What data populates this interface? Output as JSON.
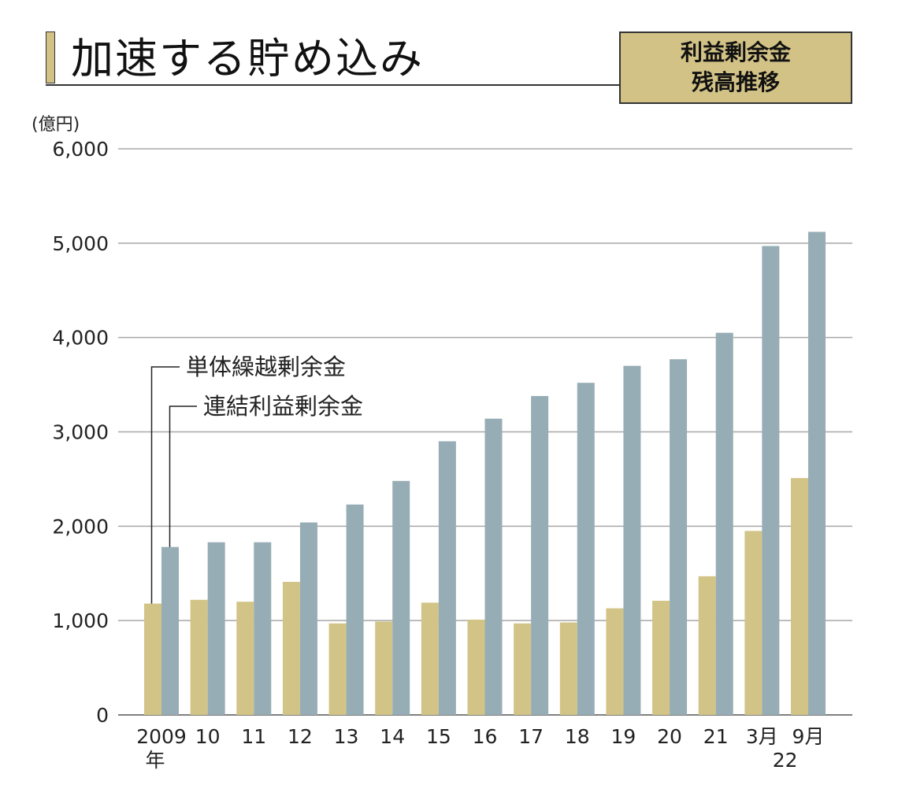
{
  "header": {
    "title": "加速する貯め込み",
    "box_line1": "利益剰余金",
    "box_line2": "残高推移"
  },
  "colors": {
    "tan": "#d2c487",
    "blue": "#97adb6",
    "grid": "#a8a8a8",
    "accent": "#d2c286"
  },
  "chart_data": {
    "type": "bar",
    "title": "加速する貯め込み",
    "subtitle": "利益剰余金 残高推移",
    "ylabel": "(億円)",
    "ylim": [
      0,
      6000
    ],
    "yticks": [
      0,
      1000,
      2000,
      3000,
      4000,
      5000,
      6000
    ],
    "ytick_labels": [
      "0",
      "1,000",
      "2,000",
      "3,000",
      "4,000",
      "5,000",
      "6,000"
    ],
    "grid": true,
    "categories": [
      "2009",
      "10",
      "11",
      "12",
      "13",
      "14",
      "15",
      "16",
      "17",
      "18",
      "19",
      "20",
      "21",
      "3月",
      "9月"
    ],
    "category_sublabels": {
      "2009": "年",
      "3月": "22",
      "9月": "22"
    },
    "series": [
      {
        "name": "単体繰越剰余金",
        "color": "#d2c487",
        "values": [
          1180,
          1220,
          1200,
          1410,
          970,
          990,
          1190,
          1010,
          970,
          980,
          1130,
          1210,
          1470,
          1950,
          2510
        ]
      },
      {
        "name": "連結利益剰余金",
        "color": "#97adb6",
        "values": [
          1780,
          1830,
          1830,
          2040,
          2230,
          2480,
          2900,
          3140,
          3380,
          3520,
          3700,
          3770,
          4050,
          4970,
          5120
        ]
      }
    ],
    "legend": "callout leader lines at top-left"
  }
}
